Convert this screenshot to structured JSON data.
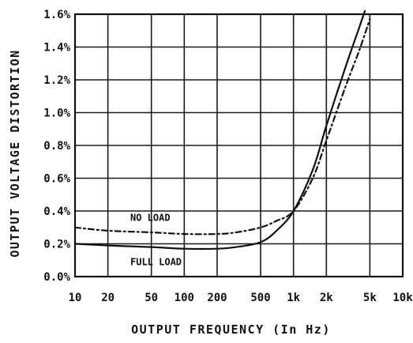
{
  "chart_data": {
    "type": "line",
    "title": "",
    "xlabel": "OUTPUT FREQUENCY (In Hz)",
    "ylabel": "OUTPUT VOLTAGE DISTORTION",
    "x_scale": "log",
    "xlim": [
      10,
      10000
    ],
    "ylim": [
      0,
      1.6
    ],
    "grid": true,
    "x_ticks": [
      10,
      20,
      50,
      100,
      200,
      500,
      1000,
      2000,
      5000,
      10000
    ],
    "x_tick_labels": [
      "10",
      "20",
      "50",
      "100",
      "200",
      "500",
      "1k",
      "2k",
      "5k",
      "10k"
    ],
    "y_ticks": [
      0,
      0.2,
      0.4,
      0.6,
      0.8,
      1.0,
      1.2,
      1.4,
      1.6
    ],
    "y_tick_labels": [
      "0.0%",
      "0.2%",
      "0.4%",
      "0.6%",
      "0.8%",
      "1.0%",
      "1.2%",
      "1.4%",
      "1.6%"
    ],
    "series": [
      {
        "name": "NO LOAD",
        "style": "dashed",
        "x": [
          10,
          20,
          50,
          100,
          200,
          300,
          500,
          700,
          1000,
          1500,
          2000,
          3000,
          4000,
          5000
        ],
        "y": [
          0.3,
          0.28,
          0.27,
          0.26,
          0.26,
          0.27,
          0.3,
          0.34,
          0.4,
          0.6,
          0.83,
          1.16,
          1.38,
          1.57
        ]
      },
      {
        "name": "FULL LOAD",
        "style": "solid",
        "x": [
          10,
          20,
          50,
          100,
          200,
          300,
          500,
          700,
          1000,
          1500,
          2000,
          3000,
          4000,
          4500
        ],
        "y": [
          0.2,
          0.19,
          0.18,
          0.17,
          0.17,
          0.18,
          0.21,
          0.28,
          0.4,
          0.65,
          0.92,
          1.28,
          1.52,
          1.62
        ]
      }
    ],
    "annotations": [
      {
        "text": "NO LOAD",
        "series": "NO LOAD"
      },
      {
        "text": "FULL LOAD",
        "series": "FULL LOAD"
      }
    ]
  }
}
